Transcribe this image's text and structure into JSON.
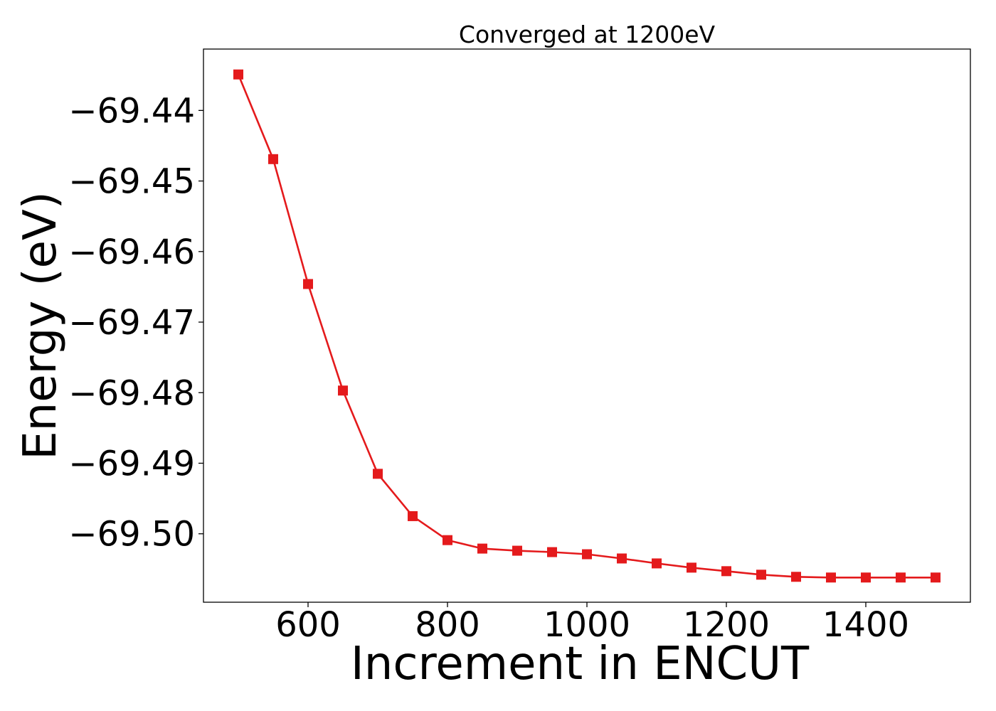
{
  "chart_data": {
    "type": "line",
    "title": "Converged at 1200eV",
    "xlabel": "Increment in ENCUT",
    "ylabel": "Energy (eV)",
    "xlim": [
      450,
      1550
    ],
    "ylim": [
      -69.5097,
      -69.4313
    ],
    "xticks": [
      600,
      800,
      1000,
      1200,
      1400
    ],
    "xtick_labels": [
      "600",
      "800",
      "1000",
      "1200",
      "1400"
    ],
    "yticks": [
      -69.44,
      -69.45,
      -69.46,
      -69.47,
      -69.48,
      -69.49,
      -69.5
    ],
    "ytick_labels": [
      "−69.44",
      "−69.45",
      "−69.46",
      "−69.47",
      "−69.48",
      "−69.49",
      "−69.50"
    ],
    "grid": false,
    "series": [
      {
        "color": "#e41a1c",
        "marker": "square",
        "x": [
          500,
          550,
          600,
          650,
          700,
          750,
          800,
          850,
          900,
          950,
          1000,
          1050,
          1100,
          1150,
          1200,
          1250,
          1300,
          1350,
          1400,
          1450,
          1500
        ],
        "y": [
          -69.4349,
          -69.4469,
          -69.4646,
          -69.4797,
          -69.4915,
          -69.4975,
          -69.5009,
          -69.5021,
          -69.5024,
          -69.5026,
          -69.5029,
          -69.5035,
          -69.5042,
          -69.5048,
          -69.5053,
          -69.5058,
          -69.5061,
          -69.5062,
          -69.5062,
          -69.5062,
          -69.5062
        ]
      }
    ]
  }
}
